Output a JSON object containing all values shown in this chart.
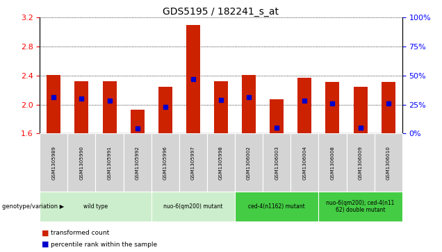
{
  "title": "GDS5195 / 182241_s_at",
  "samples": [
    "GSM1305989",
    "GSM1305990",
    "GSM1305991",
    "GSM1305992",
    "GSM1305996",
    "GSM1305997",
    "GSM1305998",
    "GSM1306002",
    "GSM1306003",
    "GSM1306004",
    "GSM1306008",
    "GSM1306009",
    "GSM1306010"
  ],
  "bar_tops": [
    2.41,
    2.32,
    2.32,
    1.93,
    2.25,
    3.1,
    2.32,
    2.41,
    2.07,
    2.37,
    2.31,
    2.25,
    2.31
  ],
  "bar_base": 1.6,
  "blue_marker_values": [
    2.1,
    2.08,
    2.05,
    1.67,
    1.97,
    2.35,
    2.06,
    2.1,
    1.68,
    2.05,
    2.02,
    1.68,
    2.02
  ],
  "ylim_left": [
    1.6,
    3.2
  ],
  "yticks_left": [
    1.6,
    2.0,
    2.4,
    2.8,
    3.2
  ],
  "yticks_right": [
    0,
    25,
    50,
    75,
    100
  ],
  "bar_color": "#CC2200",
  "marker_color": "#0000CC",
  "group_labels": [
    "wild type",
    "nuo-6(qm200) mutant",
    "ced-4(n1162) mutant",
    "nuo-6(qm200); ced-4(n11\n62) double mutant"
  ],
  "group_ranges": [
    [
      0,
      3
    ],
    [
      4,
      6
    ],
    [
      7,
      9
    ],
    [
      10,
      12
    ]
  ],
  "group_light_color": "#cceecc",
  "group_dark_color": "#44cc44",
  "legend_red": "transformed count",
  "legend_blue": "percentile rank within the sample",
  "genotype_label": "genotype/variation",
  "bar_width": 0.5,
  "plot_bg": "#ffffff",
  "sample_box_color": "#d4d4d4",
  "title_size": 10
}
